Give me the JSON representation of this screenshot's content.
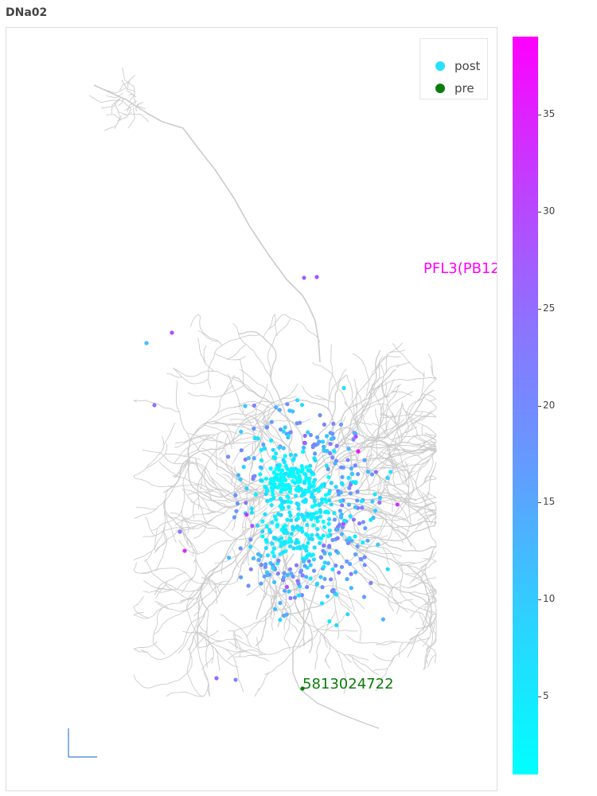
{
  "title": "DNa02",
  "legend": {
    "items": [
      {
        "label": "post",
        "color": "#29e0ff"
      },
      {
        "label": "pre",
        "color": "#0a7d0a"
      }
    ]
  },
  "annotations": {
    "upstream_label": "PFL3(PB12",
    "upstream_color": "#ff00ff",
    "pre_label": "5813024722",
    "pre_color": "#0a7d0a"
  },
  "colorbar": {
    "min": 1,
    "max": 39,
    "ticks": [
      "5",
      "10",
      "15",
      "20",
      "25",
      "30",
      "35"
    ],
    "colors": [
      "#00ffff",
      "#2ad4ff",
      "#5f9fff",
      "#8a75ff",
      "#c03fff",
      "#ff00ff"
    ]
  },
  "skeleton_color": "#cccccc",
  "scale_bar_color": "#3a7fd0"
}
